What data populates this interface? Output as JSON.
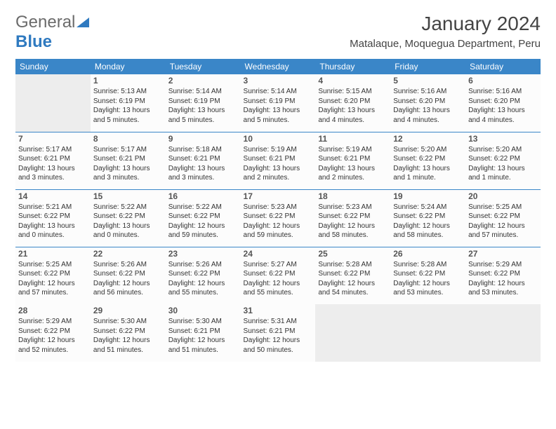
{
  "logo": {
    "line1": "General",
    "line2": "Blue"
  },
  "title": "January 2024",
  "location": "Matalaque, Moquegua Department, Peru",
  "colors": {
    "header_bg": "#3a86c8",
    "header_text": "#ffffff",
    "row_border": "#3a86c8",
    "logo_blue": "#2f7ac0",
    "logo_gray": "#6b6b6b",
    "cell_bg": "#fcfcfc",
    "empty_bg": "#ededed"
  },
  "weekdays": [
    "Sunday",
    "Monday",
    "Tuesday",
    "Wednesday",
    "Thursday",
    "Friday",
    "Saturday"
  ],
  "first_weekday_index": 1,
  "days": [
    {
      "n": 1,
      "sr": "5:13 AM",
      "ss": "6:19 PM",
      "dl": "13 hours and 5 minutes."
    },
    {
      "n": 2,
      "sr": "5:14 AM",
      "ss": "6:19 PM",
      "dl": "13 hours and 5 minutes."
    },
    {
      "n": 3,
      "sr": "5:14 AM",
      "ss": "6:19 PM",
      "dl": "13 hours and 5 minutes."
    },
    {
      "n": 4,
      "sr": "5:15 AM",
      "ss": "6:20 PM",
      "dl": "13 hours and 4 minutes."
    },
    {
      "n": 5,
      "sr": "5:16 AM",
      "ss": "6:20 PM",
      "dl": "13 hours and 4 minutes."
    },
    {
      "n": 6,
      "sr": "5:16 AM",
      "ss": "6:20 PM",
      "dl": "13 hours and 4 minutes."
    },
    {
      "n": 7,
      "sr": "5:17 AM",
      "ss": "6:21 PM",
      "dl": "13 hours and 3 minutes."
    },
    {
      "n": 8,
      "sr": "5:17 AM",
      "ss": "6:21 PM",
      "dl": "13 hours and 3 minutes."
    },
    {
      "n": 9,
      "sr": "5:18 AM",
      "ss": "6:21 PM",
      "dl": "13 hours and 3 minutes."
    },
    {
      "n": 10,
      "sr": "5:19 AM",
      "ss": "6:21 PM",
      "dl": "13 hours and 2 minutes."
    },
    {
      "n": 11,
      "sr": "5:19 AM",
      "ss": "6:21 PM",
      "dl": "13 hours and 2 minutes."
    },
    {
      "n": 12,
      "sr": "5:20 AM",
      "ss": "6:22 PM",
      "dl": "13 hours and 1 minute."
    },
    {
      "n": 13,
      "sr": "5:20 AM",
      "ss": "6:22 PM",
      "dl": "13 hours and 1 minute."
    },
    {
      "n": 14,
      "sr": "5:21 AM",
      "ss": "6:22 PM",
      "dl": "13 hours and 0 minutes."
    },
    {
      "n": 15,
      "sr": "5:22 AM",
      "ss": "6:22 PM",
      "dl": "13 hours and 0 minutes."
    },
    {
      "n": 16,
      "sr": "5:22 AM",
      "ss": "6:22 PM",
      "dl": "12 hours and 59 minutes."
    },
    {
      "n": 17,
      "sr": "5:23 AM",
      "ss": "6:22 PM",
      "dl": "12 hours and 59 minutes."
    },
    {
      "n": 18,
      "sr": "5:23 AM",
      "ss": "6:22 PM",
      "dl": "12 hours and 58 minutes."
    },
    {
      "n": 19,
      "sr": "5:24 AM",
      "ss": "6:22 PM",
      "dl": "12 hours and 58 minutes."
    },
    {
      "n": 20,
      "sr": "5:25 AM",
      "ss": "6:22 PM",
      "dl": "12 hours and 57 minutes."
    },
    {
      "n": 21,
      "sr": "5:25 AM",
      "ss": "6:22 PM",
      "dl": "12 hours and 57 minutes."
    },
    {
      "n": 22,
      "sr": "5:26 AM",
      "ss": "6:22 PM",
      "dl": "12 hours and 56 minutes."
    },
    {
      "n": 23,
      "sr": "5:26 AM",
      "ss": "6:22 PM",
      "dl": "12 hours and 55 minutes."
    },
    {
      "n": 24,
      "sr": "5:27 AM",
      "ss": "6:22 PM",
      "dl": "12 hours and 55 minutes."
    },
    {
      "n": 25,
      "sr": "5:28 AM",
      "ss": "6:22 PM",
      "dl": "12 hours and 54 minutes."
    },
    {
      "n": 26,
      "sr": "5:28 AM",
      "ss": "6:22 PM",
      "dl": "12 hours and 53 minutes."
    },
    {
      "n": 27,
      "sr": "5:29 AM",
      "ss": "6:22 PM",
      "dl": "12 hours and 53 minutes."
    },
    {
      "n": 28,
      "sr": "5:29 AM",
      "ss": "6:22 PM",
      "dl": "12 hours and 52 minutes."
    },
    {
      "n": 29,
      "sr": "5:30 AM",
      "ss": "6:22 PM",
      "dl": "12 hours and 51 minutes."
    },
    {
      "n": 30,
      "sr": "5:30 AM",
      "ss": "6:21 PM",
      "dl": "12 hours and 51 minutes."
    },
    {
      "n": 31,
      "sr": "5:31 AM",
      "ss": "6:21 PM",
      "dl": "12 hours and 50 minutes."
    }
  ],
  "labels": {
    "sunrise": "Sunrise:",
    "sunset": "Sunset:",
    "daylight": "Daylight:"
  }
}
